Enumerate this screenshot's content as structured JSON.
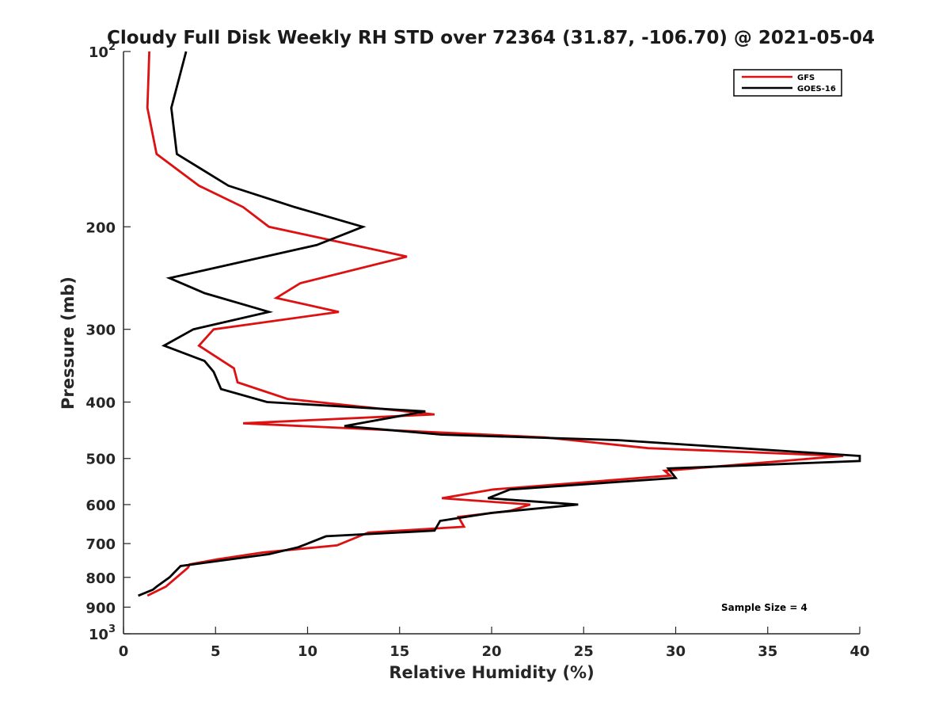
{
  "chart_data": {
    "type": "line",
    "title": "Cloudy Full Disk Weekly RH STD over 72364 (31.87, -106.70) @ 2021-05-04",
    "xlabel": "Relative Humidity (%)",
    "ylabel": "Pressure (mb)",
    "xlim": [
      0,
      40
    ],
    "ylim": [
      100,
      1000
    ],
    "y_scale": "log",
    "y_reversed": true,
    "x_ticks": [
      "0",
      "5",
      "10",
      "15",
      "20",
      "25",
      "30",
      "35",
      "40"
    ],
    "y_ticks": [
      {
        "value": 100,
        "label": "10^2"
      },
      {
        "value": 200,
        "label": "200"
      },
      {
        "value": 300,
        "label": "300"
      },
      {
        "value": 400,
        "label": "400"
      },
      {
        "value": 500,
        "label": "500"
      },
      {
        "value": 600,
        "label": "600"
      },
      {
        "value": 700,
        "label": "700"
      },
      {
        "value": 800,
        "label": "800"
      },
      {
        "value": 900,
        "label": "900"
      },
      {
        "value": 1000,
        "label": "10^3"
      }
    ],
    "grid": false,
    "legend_position": "top-right",
    "annotation": "Sample Size = 4",
    "series": [
      {
        "name": "GFS",
        "color": "#dd1111",
        "points": [
          [
            1.4,
            100
          ],
          [
            1.3,
            125
          ],
          [
            1.8,
            150
          ],
          [
            4.1,
            170
          ],
          [
            6.5,
            185
          ],
          [
            7.9,
            200
          ],
          [
            15.4,
            225
          ],
          [
            9.6,
            250
          ],
          [
            8.3,
            265
          ],
          [
            11.7,
            280
          ],
          [
            4.9,
            300
          ],
          [
            4.1,
            320
          ],
          [
            6.0,
            350
          ],
          [
            6.2,
            370
          ],
          [
            8.9,
            395
          ],
          [
            16.9,
            420
          ],
          [
            6.5,
            435
          ],
          [
            22.9,
            460
          ],
          [
            28.5,
            480
          ],
          [
            39.1,
            495
          ],
          [
            29.4,
            525
          ],
          [
            29.7,
            535
          ],
          [
            20.1,
            565
          ],
          [
            17.3,
            585
          ],
          [
            22.1,
            600
          ],
          [
            21.0,
            615
          ],
          [
            18.2,
            630
          ],
          [
            18.5,
            655
          ],
          [
            13.3,
            670
          ],
          [
            11.6,
            705
          ],
          [
            7.6,
            725
          ],
          [
            5.1,
            745
          ],
          [
            3.6,
            760
          ],
          [
            3.5,
            770
          ],
          [
            2.3,
            830
          ],
          [
            1.3,
            860
          ]
        ]
      },
      {
        "name": "GOES-16",
        "color": "#000000",
        "points": [
          [
            3.4,
            100
          ],
          [
            2.6,
            125
          ],
          [
            2.9,
            150
          ],
          [
            5.7,
            170
          ],
          [
            9.3,
            185
          ],
          [
            13.0,
            200
          ],
          [
            10.5,
            215
          ],
          [
            2.5,
            245
          ],
          [
            4.4,
            260
          ],
          [
            7.9,
            280
          ],
          [
            3.8,
            300
          ],
          [
            2.2,
            320
          ],
          [
            4.4,
            340
          ],
          [
            4.9,
            355
          ],
          [
            5.3,
            380
          ],
          [
            7.8,
            400
          ],
          [
            16.4,
            415
          ],
          [
            12.0,
            440
          ],
          [
            17.3,
            455
          ],
          [
            26.9,
            465
          ],
          [
            33.5,
            480
          ],
          [
            40.0,
            495
          ],
          [
            40.0,
            505
          ],
          [
            29.6,
            520
          ],
          [
            30.0,
            540
          ],
          [
            21.0,
            565
          ],
          [
            19.8,
            585
          ],
          [
            24.7,
            600
          ],
          [
            20.0,
            620
          ],
          [
            17.2,
            640
          ],
          [
            16.9,
            665
          ],
          [
            11.0,
            680
          ],
          [
            9.5,
            710
          ],
          [
            7.9,
            730
          ],
          [
            3.1,
            765
          ],
          [
            2.5,
            800
          ],
          [
            1.8,
            830
          ],
          [
            1.6,
            840
          ],
          [
            0.8,
            860
          ]
        ]
      }
    ]
  }
}
